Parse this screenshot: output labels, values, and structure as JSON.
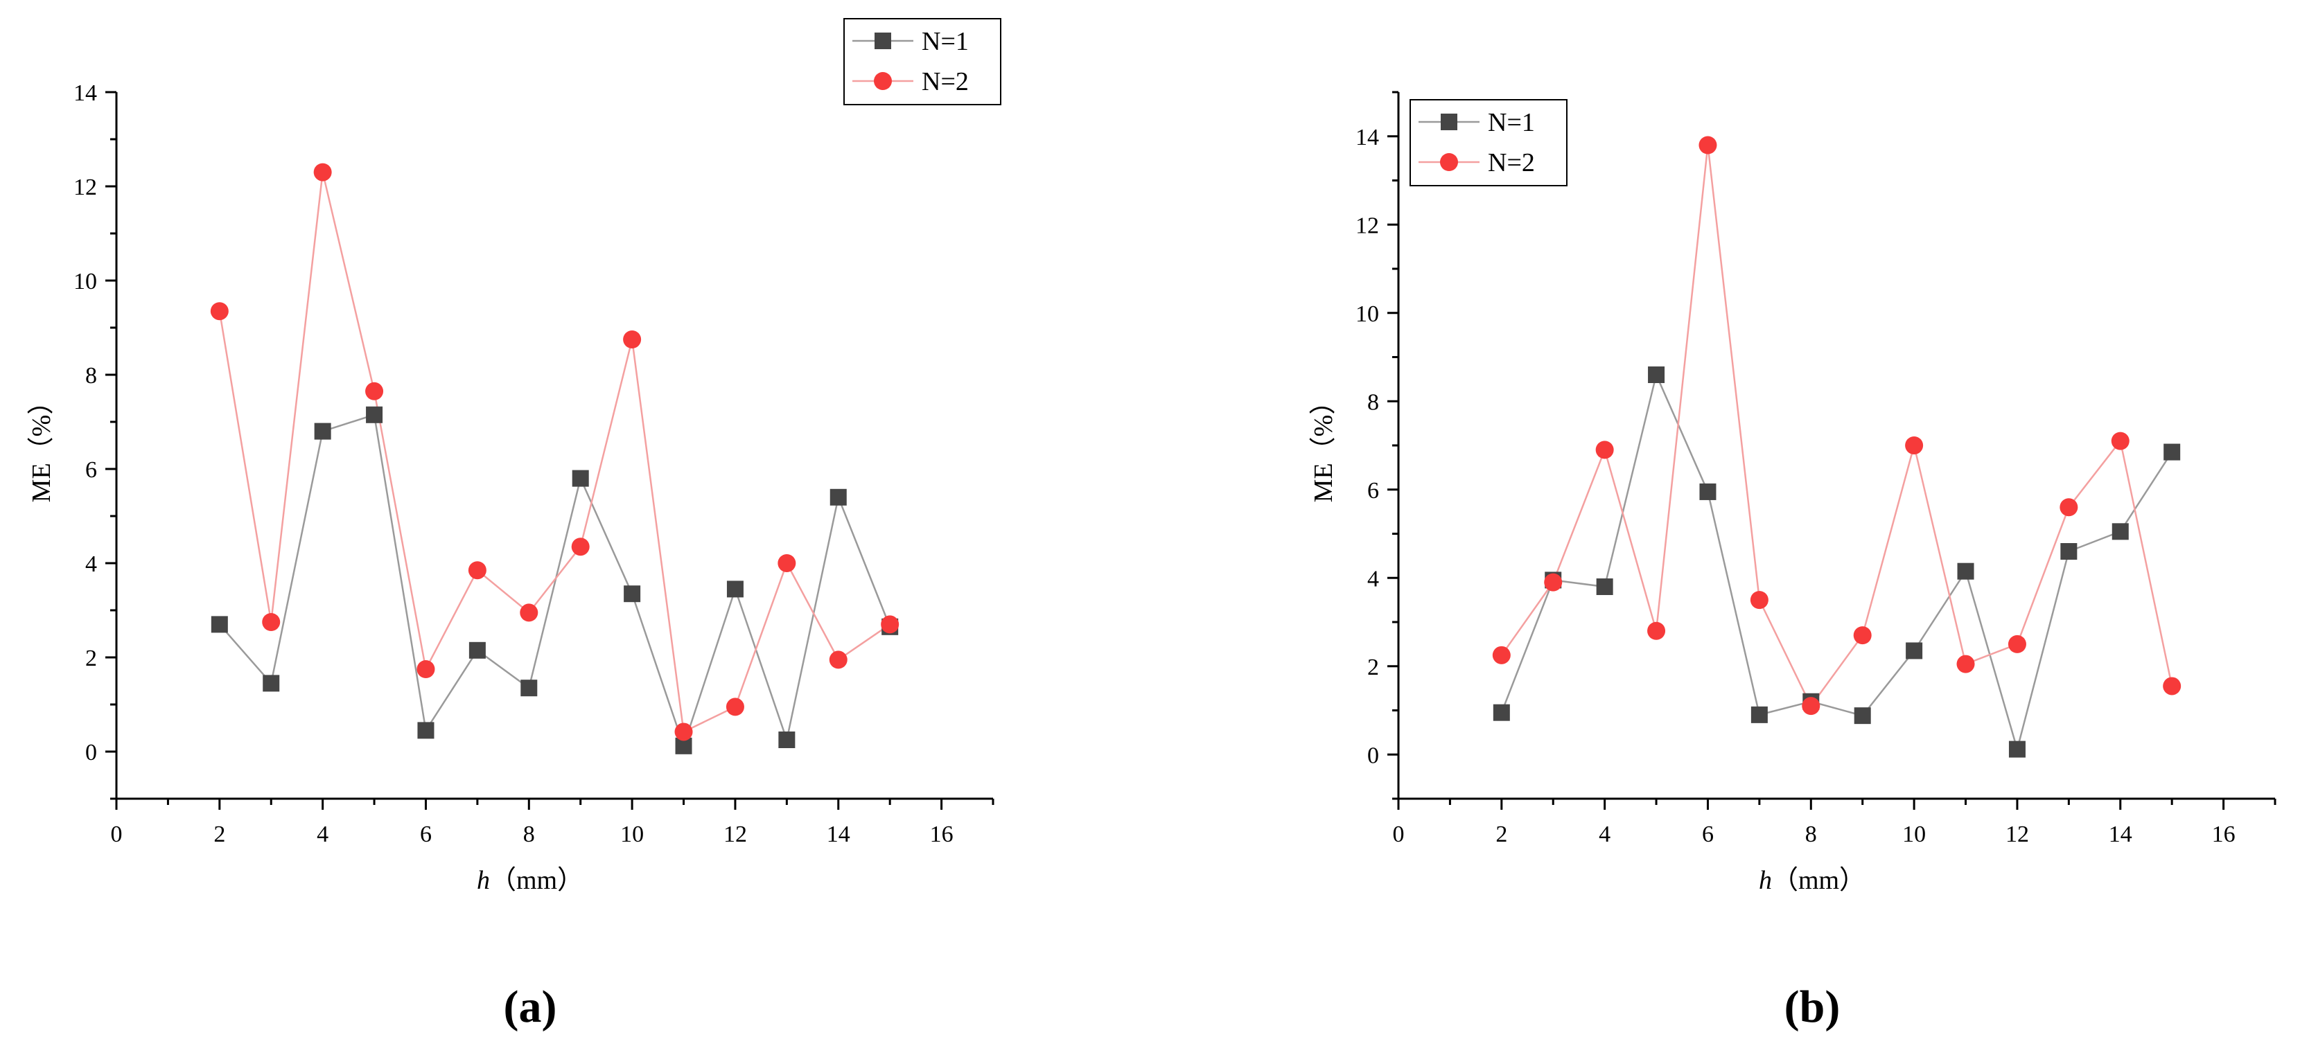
{
  "chart_data": [
    {
      "type": "line",
      "panel": "(a)",
      "xlabel_var": "h",
      "xlabel_unit": "（mm）",
      "ylabel": "ME（%）",
      "xlim": [
        0,
        17
      ],
      "ylim": [
        -1,
        14
      ],
      "xticks": [
        0,
        2,
        4,
        6,
        8,
        10,
        12,
        14,
        16
      ],
      "yticks": [
        0,
        2,
        4,
        6,
        8,
        10,
        12,
        14
      ],
      "legend_position": "top-right",
      "x": [
        2,
        3,
        4,
        5,
        6,
        7,
        8,
        9,
        10,
        11,
        12,
        13,
        14,
        15
      ],
      "series": [
        {
          "name": "N=1",
          "marker": "square",
          "color": "#454545",
          "line_color": "#9a9a9a",
          "values": [
            2.7,
            1.45,
            6.8,
            7.15,
            0.45,
            2.15,
            1.35,
            5.8,
            3.35,
            0.12,
            3.45,
            0.25,
            5.4,
            2.65
          ]
        },
        {
          "name": "N=2",
          "marker": "circle",
          "color": "#f63a3a",
          "line_color": "#f4a0a0",
          "values": [
            9.35,
            2.75,
            12.3,
            7.65,
            1.75,
            3.85,
            2.95,
            4.35,
            8.75,
            0.42,
            0.95,
            4.0,
            1.95,
            2.7
          ]
        }
      ]
    },
    {
      "type": "line",
      "panel": "(b)",
      "xlabel_var": "h",
      "xlabel_unit": "（mm）",
      "ylabel": "ME（%）",
      "xlim": [
        0,
        17
      ],
      "ylim": [
        -1,
        15
      ],
      "xticks": [
        0,
        2,
        4,
        6,
        8,
        10,
        12,
        14,
        16
      ],
      "yticks": [
        0,
        2,
        4,
        6,
        8,
        10,
        12,
        14
      ],
      "legend_position": "top-left",
      "x": [
        2,
        3,
        4,
        5,
        6,
        7,
        8,
        9,
        10,
        11,
        12,
        13,
        14,
        15
      ],
      "series": [
        {
          "name": "N=1",
          "marker": "square",
          "color": "#454545",
          "line_color": "#9a9a9a",
          "values": [
            0.95,
            3.95,
            3.8,
            8.6,
            5.95,
            0.9,
            1.2,
            0.88,
            2.35,
            4.15,
            0.12,
            4.6,
            5.05,
            6.85
          ]
        },
        {
          "name": "N=2",
          "marker": "circle",
          "color": "#f63a3a",
          "line_color": "#f4a0a0",
          "values": [
            2.25,
            3.9,
            6.9,
            2.8,
            13.8,
            3.5,
            1.1,
            2.7,
            7.0,
            2.05,
            2.5,
            5.6,
            7.1,
            1.55
          ]
        }
      ]
    }
  ]
}
